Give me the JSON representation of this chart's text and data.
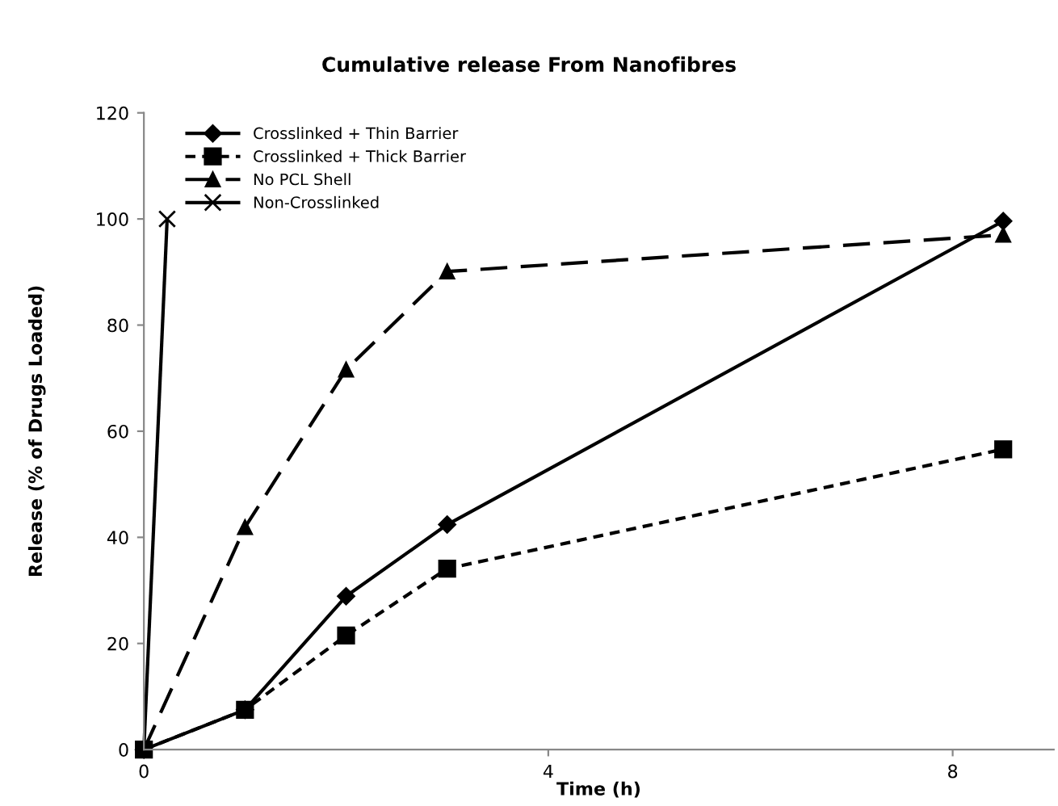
{
  "chart_data": {
    "type": "line",
    "title": "Cumulative release From Nanofibres",
    "xlabel": "Time (h)",
    "ylabel": "Release (% of Drugs Loaded)",
    "xlim": [
      0,
      9
    ],
    "xticks": [
      0,
      4,
      8
    ],
    "ylim": [
      0,
      120
    ],
    "yticks": [
      0,
      20,
      40,
      60,
      80,
      100,
      120
    ],
    "grid": false,
    "legend": "top left",
    "series": [
      {
        "name": "Crosslinked + Thin Barrier",
        "color": "#000000",
        "marker": "diamond",
        "line_style": "solid",
        "x": [
          0,
          1,
          2,
          3,
          8.5
        ],
        "values": [
          0,
          7.5,
          28.9,
          42.4,
          99.6
        ]
      },
      {
        "name": "Crosslinked + Thick Barrier",
        "color": "#000000",
        "marker": "square",
        "line_style": "dotted",
        "x": [
          0,
          1,
          2,
          3,
          8.5
        ],
        "values": [
          0,
          7.5,
          21.5,
          34.1,
          56.6
        ]
      },
      {
        "name": "No PCL Shell",
        "color": "#000000",
        "marker": "triangle",
        "line_style": "dashed",
        "x": [
          0,
          1,
          2,
          3,
          8.5
        ],
        "values": [
          0,
          41.9,
          71.6,
          90.1,
          97
        ]
      },
      {
        "name": "Non-Crosslinked",
        "color": "#000000",
        "marker": "cross",
        "line_style": "solid",
        "x": [
          0,
          0.23
        ],
        "values": [
          0,
          100
        ]
      }
    ]
  }
}
